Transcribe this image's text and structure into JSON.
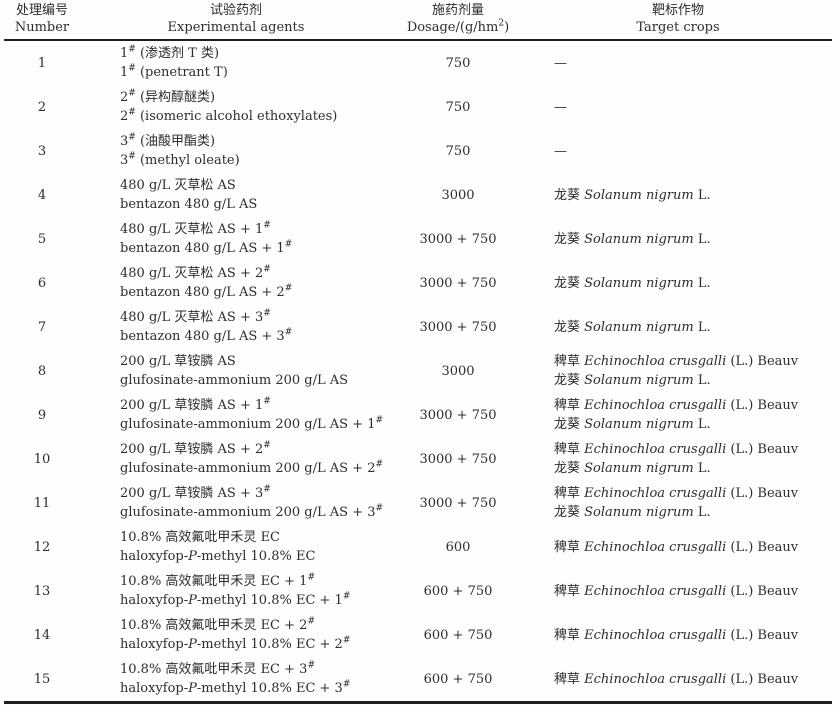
{
  "table": {
    "columns": [
      {
        "cn": "处理编号",
        "en": "Number"
      },
      {
        "cn": "试验药剂",
        "en": "Experimental agents"
      },
      {
        "cn": "施药剂量",
        "en": "Dosage/(g/hm^2^)"
      },
      {
        "cn": "靶标作物",
        "en": "Target crops"
      }
    ],
    "rows": [
      {
        "number": "1",
        "agent_cn": "1^#^ (渗透剂 T 类)",
        "agent_en": "1^#^ (penetrant T)",
        "dosage": "750",
        "targets": [
          "—"
        ]
      },
      {
        "number": "2",
        "agent_cn": "2^#^ (异构醇醚类)",
        "agent_en": "2^#^ (isomeric alcohol ethoxylates)",
        "dosage": "750",
        "targets": [
          "—"
        ]
      },
      {
        "number": "3",
        "agent_cn": "3^#^ (油酸甲酯类)",
        "agent_en": "3^#^ (methyl oleate)",
        "dosage": "750",
        "targets": [
          "—"
        ]
      },
      {
        "number": "4",
        "agent_cn": "480 g/L 灭草松 AS",
        "agent_en": "bentazon 480 g/L AS",
        "dosage": "3000",
        "targets": [
          "龙葵 *Solanum nigrum* L."
        ]
      },
      {
        "number": "5",
        "agent_cn": "480 g/L 灭草松 AS + 1^#^",
        "agent_en": "bentazon 480 g/L AS + 1^#^",
        "dosage": "3000 + 750",
        "targets": [
          "龙葵 *Solanum nigrum* L."
        ]
      },
      {
        "number": "6",
        "agent_cn": "480 g/L 灭草松 AS + 2^#^",
        "agent_en": "bentazon 480 g/L AS + 2^#^",
        "dosage": "3000 + 750",
        "targets": [
          "龙葵 *Solanum nigrum* L."
        ]
      },
      {
        "number": "7",
        "agent_cn": "480 g/L 灭草松 AS + 3^#^",
        "agent_en": "bentazon 480 g/L AS + 3^#^",
        "dosage": "3000 + 750",
        "targets": [
          "龙葵 *Solanum nigrum* L."
        ]
      },
      {
        "number": "8",
        "agent_cn": "200 g/L 草铵膦 AS",
        "agent_en": "glufosinate-ammonium 200 g/L AS",
        "dosage": "3000",
        "targets": [
          "稗草 *Echinochloa crusgalli* (L.) Beauv",
          "龙葵 *Solanum nigrum* L."
        ]
      },
      {
        "number": "9",
        "agent_cn": "200 g/L 草铵膦 AS + 1^#^",
        "agent_en": "glufosinate-ammonium 200 g/L AS + 1^#^",
        "dosage": "3000 + 750",
        "targets": [
          "稗草 *Echinochloa crusgalli* (L.) Beauv",
          "龙葵 *Solanum nigrum* L."
        ]
      },
      {
        "number": "10",
        "agent_cn": "200 g/L 草铵膦 AS + 2^#^",
        "agent_en": "glufosinate-ammonium 200 g/L AS + 2^#^",
        "dosage": "3000 + 750",
        "targets": [
          "稗草 *Echinochloa crusgalli* (L.) Beauv",
          "龙葵 *Solanum nigrum* L."
        ]
      },
      {
        "number": "11",
        "agent_cn": "200 g/L 草铵膦 AS + 3^#^",
        "agent_en": "glufosinate-ammonium 200 g/L AS + 3^#^",
        "dosage": "3000 + 750",
        "targets": [
          "稗草 *Echinochloa crusgalli* (L.) Beauv",
          "龙葵 *Solanum nigrum* L."
        ]
      },
      {
        "number": "12",
        "agent_cn": "10.8% 高效氟吡甲禾灵 EC",
        "agent_en": "haloxyfop-*P*-methyl 10.8% EC",
        "dosage": "600",
        "targets": [
          "稗草 *Echinochloa crusgalli* (L.) Beauv"
        ]
      },
      {
        "number": "13",
        "agent_cn": "10.8% 高效氟吡甲禾灵 EC + 1^#^",
        "agent_en": "haloxyfop-*P*-methyl 10.8% EC + 1^#^",
        "dosage": "600 + 750",
        "targets": [
          "稗草 *Echinochloa crusgalli* (L.) Beauv"
        ]
      },
      {
        "number": "14",
        "agent_cn": "10.8% 高效氟吡甲禾灵 EC + 2^#^",
        "agent_en": "haloxyfop-*P*-methyl 10.8% EC + 2^#^",
        "dosage": "600 + 750",
        "targets": [
          "稗草 *Echinochloa crusgalli* (L.) Beauv"
        ]
      },
      {
        "number": "15",
        "agent_cn": "10.8% 高效氟吡甲禾灵 EC + 3^#^",
        "agent_en": "haloxyfop-*P*-methyl 10.8% EC + 3^#^",
        "dosage": "600 + 750",
        "targets": [
          "稗草 *Echinochloa crusgalli* (L.) Beauv"
        ]
      }
    ]
  }
}
